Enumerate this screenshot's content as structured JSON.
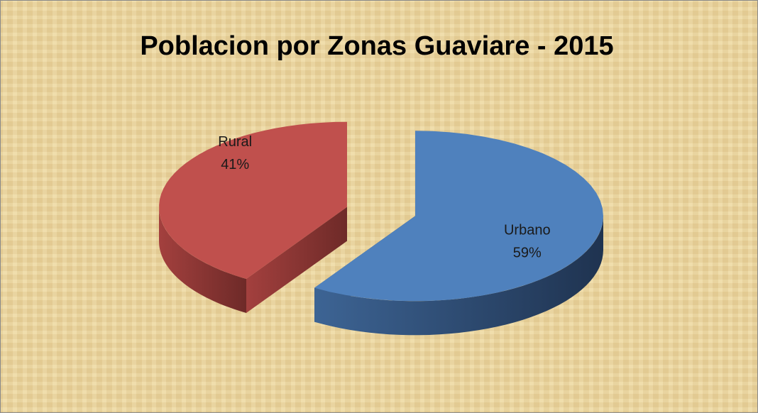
{
  "chart_data": {
    "type": "pie3d",
    "title": "Poblacion por Zonas Guaviare - 2015",
    "categories": [
      "Urbano",
      "Rural"
    ],
    "values": [
      59,
      41
    ],
    "value_labels": [
      "59%",
      "41%"
    ],
    "colors": [
      "#4f81bd",
      "#c0504d"
    ]
  }
}
